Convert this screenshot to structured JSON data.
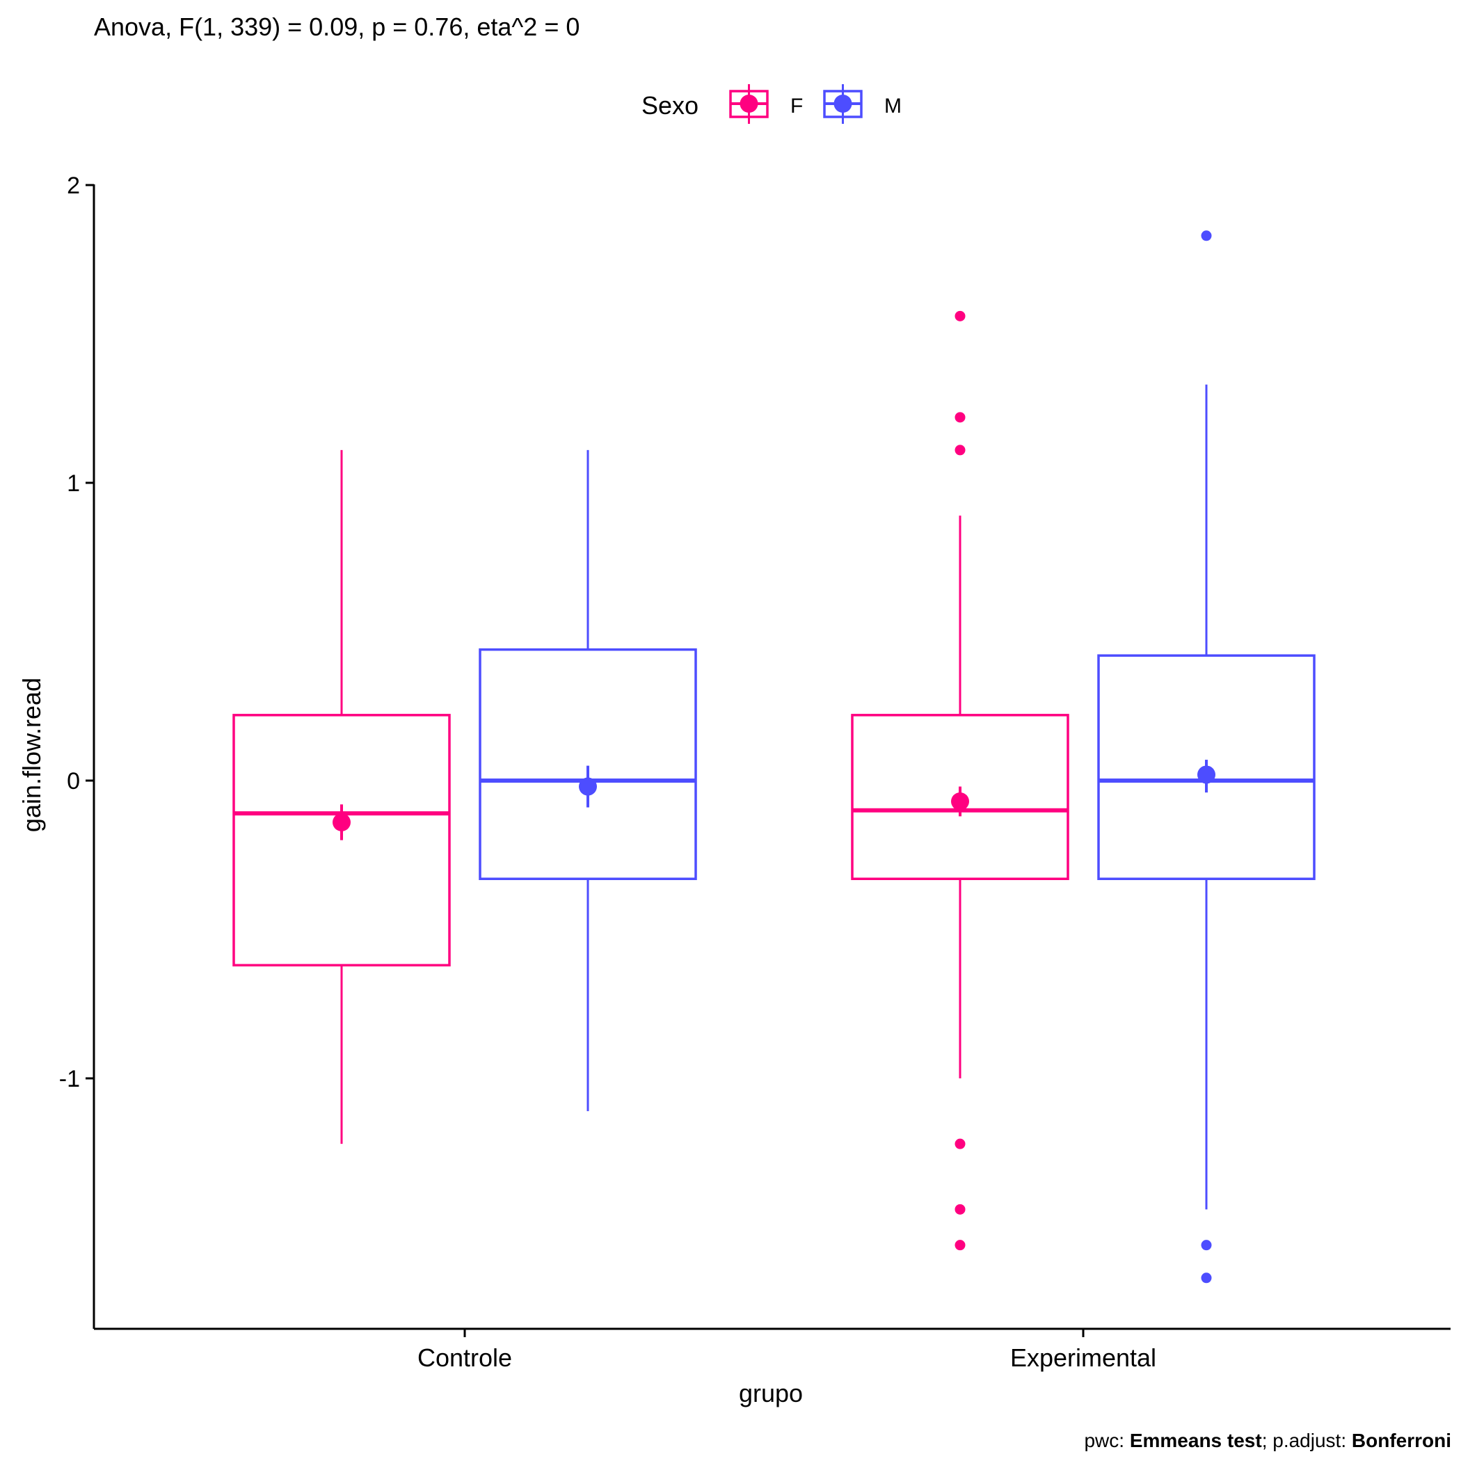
{
  "title": "Anova, F(1, 339) = 0.09, p = 0.76, eta^2 = 0",
  "caption": {
    "pwc_label": "pwc: ",
    "pwc_value": "Emmeans test",
    "sep": "; p.adjust: ",
    "adjust_value": "Bonferroni"
  },
  "colors": {
    "F": "#ff0080",
    "M": "#4d4dff"
  },
  "chart_data": {
    "type": "boxplot",
    "xlabel": "grupo",
    "ylabel": "gain.flow.read",
    "ylim": [
      -1.84,
      2.0
    ],
    "yticks": [
      -1,
      0,
      1,
      2
    ],
    "categories": [
      "Controle",
      "Experimental"
    ],
    "legend": {
      "title": "Sexo",
      "position": "top",
      "entries": [
        "F",
        "M"
      ]
    },
    "grid": false,
    "series": [
      {
        "name": "F",
        "boxes": [
          {
            "group": "Controle",
            "whisker_low": -1.22,
            "q1": -0.62,
            "median": -0.11,
            "q3": 0.22,
            "whisker_high": 1.11,
            "mean": -0.14,
            "ci": [
              -0.2,
              -0.08
            ],
            "outliers": []
          },
          {
            "group": "Experimental",
            "whisker_low": -1.0,
            "q1": -0.33,
            "median": -0.1,
            "q3": 0.22,
            "whisker_high": 0.89,
            "mean": -0.07,
            "ci": [
              -0.12,
              -0.02
            ],
            "outliers": [
              1.56,
              1.22,
              1.11,
              -1.22,
              -1.44,
              -1.56
            ]
          }
        ]
      },
      {
        "name": "M",
        "boxes": [
          {
            "group": "Controle",
            "whisker_low": -1.11,
            "q1": -0.33,
            "median": 0.0,
            "q3": 0.44,
            "whisker_high": 1.11,
            "mean": -0.02,
            "ci": [
              -0.09,
              0.05
            ],
            "outliers": []
          },
          {
            "group": "Experimental",
            "whisker_low": -1.44,
            "q1": -0.33,
            "median": 0.0,
            "q3": 0.42,
            "whisker_high": 1.33,
            "mean": 0.02,
            "ci": [
              -0.04,
              0.07
            ],
            "outliers": [
              1.83,
              -1.56,
              -1.67
            ]
          }
        ]
      }
    ]
  }
}
